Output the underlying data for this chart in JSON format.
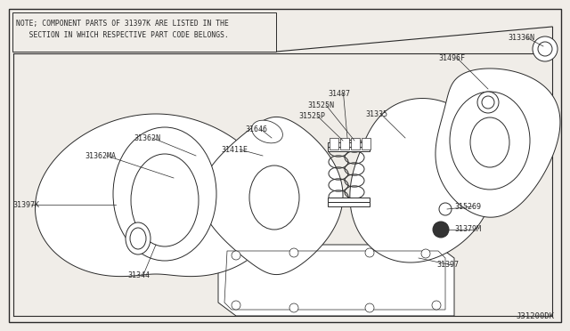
{
  "bg_color": "#f0ede8",
  "line_color": "#2a2a2a",
  "note_text1": "NOTE; COMPONENT PARTS OF 31397K ARE LISTED IN THE",
  "note_text2": "   SECTION IN WHICH RESPECTIVE PART CODE BELONGS.",
  "diagram_id": "J31200DK",
  "figsize": [
    6.4,
    3.72
  ],
  "dpi": 100,
  "white": "#ffffff",
  "gray": "#888888"
}
